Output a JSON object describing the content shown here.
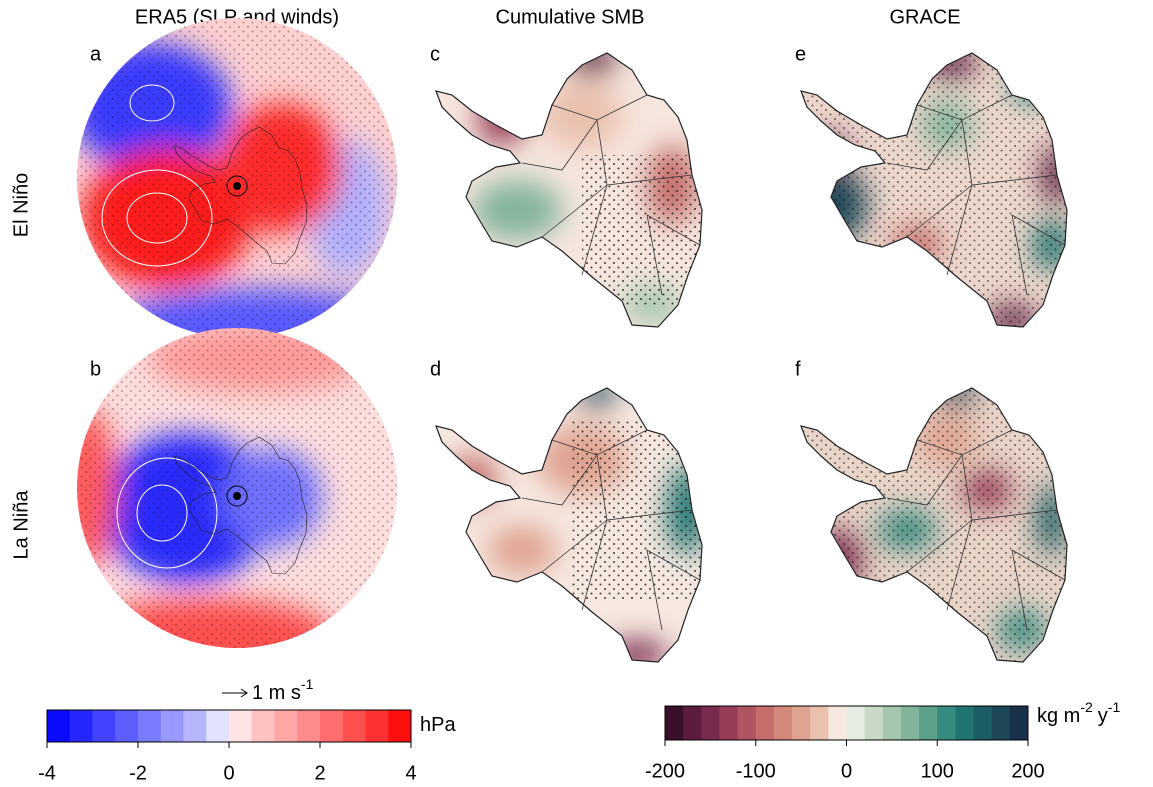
{
  "columns": [
    "ERA5 (SLP and winds)",
    "Cumulative SMB",
    "GRACE"
  ],
  "rows": [
    "El Niño",
    "La Niña"
  ],
  "panels": [
    "a",
    "b",
    "c",
    "d",
    "e",
    "f"
  ],
  "wind_reference": [
    "1 m s",
    "-1"
  ],
  "colorbars": [
    {
      "lim": [
        -4,
        4
      ],
      "ticks": [
        -4,
        -2,
        0,
        2,
        4
      ],
      "unit": [
        "hPa"
      ],
      "colors": [
        "#0a0aff",
        "#2626ff",
        "#4242ff",
        "#5e5eff",
        "#7a7aff",
        "#9898ff",
        "#b6b6ff",
        "#e2e2ff",
        "#ffe4e4",
        "#ffc2c2",
        "#ffa6a6",
        "#ff8a8a",
        "#ff6e6e",
        "#ff5050",
        "#ff3232",
        "#ff0e0e"
      ]
    },
    {
      "lim": [
        -200,
        200
      ],
      "ticks": [
        -200,
        -100,
        0,
        100,
        200
      ],
      "unit": [
        "kg m",
        "-2",
        "y",
        "-1"
      ],
      "colors": [
        "#3a0f2c",
        "#5b1c40",
        "#7a2a4c",
        "#983d57",
        "#b15461",
        "#c46d6b",
        "#d3887a",
        "#dfa392",
        "#eac0ae",
        "#f7e8e0",
        "#e6ece2",
        "#c8dac6",
        "#a6c7ae",
        "#82b49b",
        "#5ca08b",
        "#388b7f",
        "#217571",
        "#1d5e64",
        "#1c4757",
        "#18304a"
      ]
    }
  ]
}
